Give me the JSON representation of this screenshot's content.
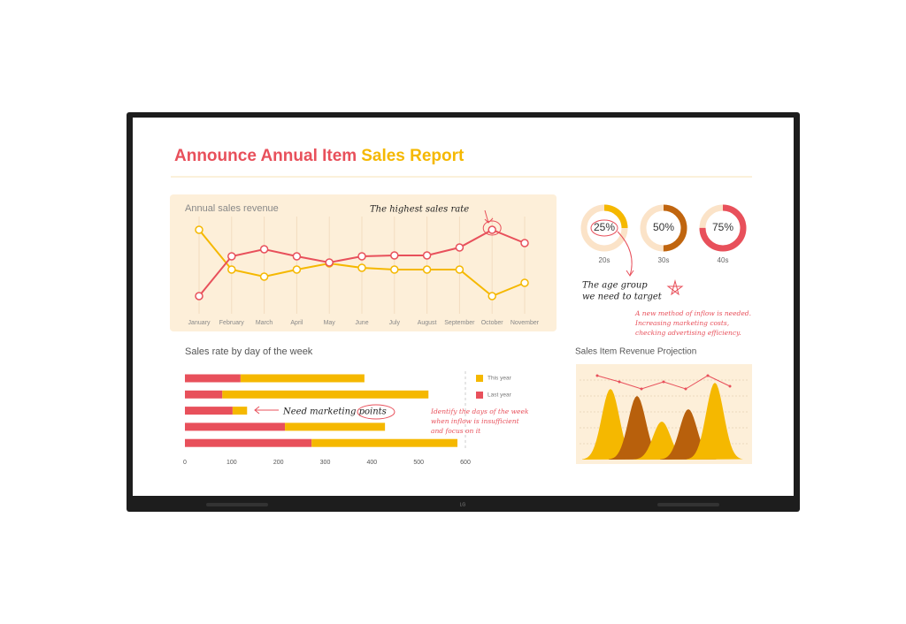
{
  "title_parts": [
    "Announce Annual Item",
    "Sales Report"
  ],
  "chart_data": [
    {
      "type": "line",
      "title": "Annual sales revenue",
      "categories": [
        "January",
        "February",
        "March",
        "April",
        "May",
        "June",
        "July",
        "August",
        "September",
        "October",
        "November"
      ],
      "series": [
        {
          "color": "#f5b800",
          "values": [
            90,
            45,
            37,
            45,
            52,
            47,
            45,
            45,
            45,
            15,
            30
          ]
        },
        {
          "color": "#e8505b",
          "values": [
            15,
            60,
            68,
            60,
            53,
            60,
            61,
            61,
            70,
            90,
            75
          ]
        }
      ],
      "annotation": "The highest sales rate"
    },
    {
      "type": "donut",
      "categories": [
        "20s",
        "30s",
        "40s"
      ],
      "values": [
        25,
        50,
        75
      ],
      "value_labels": [
        "25%",
        "50%",
        "75%"
      ],
      "colors": [
        "#f5b800",
        "#c0650f",
        "#e8505b"
      ],
      "annotations": [
        "The age group",
        "we need to target"
      ],
      "notes": [
        "A new method of inflow is needed.",
        "Increasing marketing costs,",
        "checking advertising efficiency."
      ]
    },
    {
      "type": "bar",
      "title": "Sales rate by day of the week",
      "orientation": "horizontal",
      "stacked": true,
      "categories": [
        null,
        null,
        null,
        null,
        null
      ],
      "series": [
        {
          "name": "This year",
          "color": "#f5b800",
          "values": [
            265,
            441,
            31,
            214,
            312
          ]
        },
        {
          "name": "Last year",
          "color": "#e8505b",
          "values": [
            119,
            80,
            102,
            214,
            271
          ]
        }
      ],
      "xlim": [
        0,
        600
      ],
      "xticks": [
        0,
        100,
        200,
        300,
        400,
        500,
        600
      ],
      "annotation": "Need marketing points",
      "notes": [
        "Identify the days of the week",
        "when inflow is insufficient",
        "and focus on it"
      ]
    },
    {
      "type": "area",
      "title": "Sales Item Revenue Projection",
      "peaks": {
        "values": [
          80,
          72,
          43,
          57,
          87
        ],
        "colors": [
          "#f5b800",
          "#b8600c",
          "#f5b800",
          "#b8600c",
          "#f5b800"
        ]
      },
      "line": {
        "color": "#e8505b",
        "values": [
          95,
          88,
          80,
          88,
          80,
          95,
          83
        ]
      }
    }
  ]
}
